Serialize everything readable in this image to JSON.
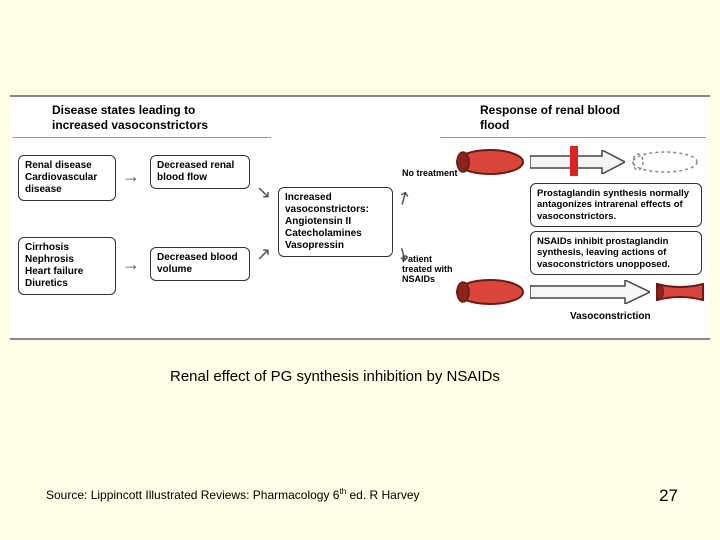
{
  "slide": {
    "background": "#fefee6",
    "caption": "Renal effect of PG synthesis inhibition by NSAIDs",
    "source_prefix": "Source: Lippincott Illustrated Reviews: Pharmacology 6",
    "source_sup": "th",
    "source_suffix": " ed. R Harvey",
    "page_number": "27"
  },
  "diagram": {
    "header_left": "Disease states leading to increased vasoconstrictors",
    "header_right": "Response of renal blood flood",
    "boxes": {
      "renal_disease": "Renal disease\nCardiovascular disease",
      "cirrhosis": "Cirrhosis\nNephrosis\nHeart failure\nDiuretics",
      "decreased_flow": "Decreased renal blood flow",
      "decreased_volume": "Decreased blood volume",
      "increased_vaso": "Increased vasoconstrictors:\nAngiotensin II\nCatecholamines\nVasopressin",
      "pg_normal": "Prostaglandin synthesis normally antagonizes intrarenal effects of vasoconstrictors.",
      "nsaids_inhibit": "NSAIDs inhibit prostaglandin synthesis, leaving actions of vasoconstrictors unopposed."
    },
    "branch_labels": {
      "no_treatment": "No treatment",
      "treated": "Patient treated with NSAIDs"
    },
    "vasoconstriction_label": "Vasoconstriction",
    "colors": {
      "vessel_fill": "#d9453a",
      "vessel_stroke": "#6a1b14",
      "arrow_fill": "#f5f5f5",
      "arrow_stroke": "#444",
      "red_bar": "#d22"
    }
  }
}
